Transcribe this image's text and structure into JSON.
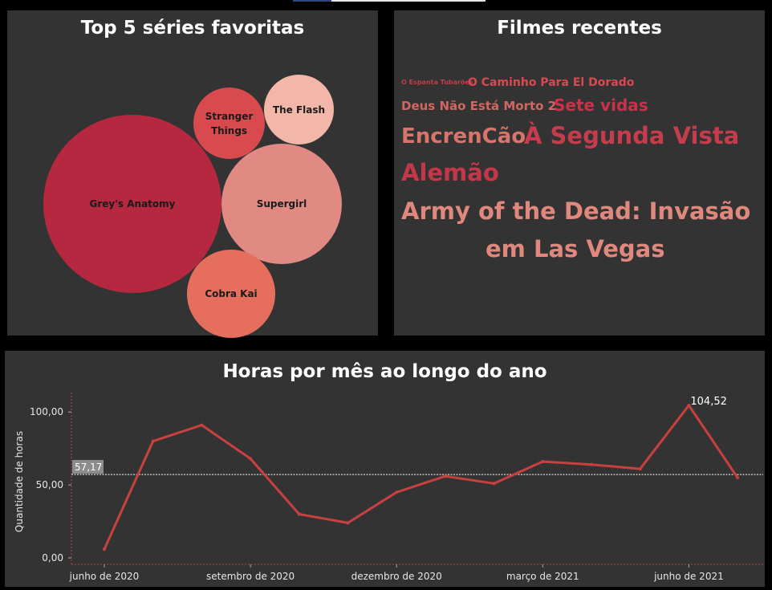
{
  "bubbles": {
    "title": "Top 5 séries favoritas",
    "items": [
      {
        "label": "Grey's Anatomy",
        "color": "#b5283f"
      },
      {
        "label": "Stranger Things",
        "color": "#d94a4f"
      },
      {
        "label": "The Flash",
        "color": "#f3b7a9"
      },
      {
        "label": "Supergirl",
        "color": "#e08a83"
      },
      {
        "label": "Cobra Kai",
        "color": "#e56f5c"
      }
    ]
  },
  "films": {
    "title": "Filmes recentes",
    "items": [
      {
        "label": "O Espanta Tubarões",
        "color": "#c43b4b"
      },
      {
        "label": "O Caminho Para El Dorado",
        "color": "#d84a52"
      },
      {
        "label": "Deus Não Está Morto 2",
        "color": "#d36563"
      },
      {
        "label": "Sete vidas",
        "color": "#c8334a"
      },
      {
        "label": "EncrenCão",
        "color": "#d8756a"
      },
      {
        "label": "À Segunda Vista",
        "color": "#c53d4c"
      },
      {
        "label": "Alemão",
        "color": "#c4374a"
      },
      {
        "label": "Army of the Dead: Invasão",
        "color": "#e0887d"
      },
      {
        "label": "em Las Vegas",
        "color": "#e0887d"
      }
    ]
  },
  "chart_data": {
    "type": "line",
    "title": "Horas por mês ao longo do ano",
    "ylabel": "Quantidade de horas",
    "xlabel": "",
    "x": [
      "2020-06",
      "2020-07",
      "2020-08",
      "2020-09",
      "2020-10",
      "2020-11",
      "2020-12",
      "2021-01",
      "2021-02",
      "2021-03",
      "2021-04",
      "2021-05",
      "2021-06",
      "2021-07"
    ],
    "series": [
      {
        "values": [
          6,
          80,
          91,
          68,
          30,
          24,
          45,
          56,
          51,
          66,
          64,
          61,
          104.52,
          55
        ]
      }
    ],
    "x_ticks": [
      {
        "x": "2020-06",
        "label": "junho de 2020"
      },
      {
        "x": "2020-09",
        "label": "setembro de 2020"
      },
      {
        "x": "2020-12",
        "label": "dezembro de 2020"
      },
      {
        "x": "2021-03",
        "label": "março de 2021"
      },
      {
        "x": "2021-06",
        "label": "junho de 2021"
      }
    ],
    "y_ticks": [
      {
        "value": 0,
        "label": "0,00"
      },
      {
        "value": 50,
        "label": "50,00"
      },
      {
        "value": 100,
        "label": "100,00"
      }
    ],
    "ylim": [
      0,
      104.52
    ],
    "reference_line": {
      "value": 57.17,
      "label": "57,17"
    },
    "max_label": {
      "x": "2021-06",
      "label": "104,52"
    },
    "line_color": "#c8403f"
  }
}
